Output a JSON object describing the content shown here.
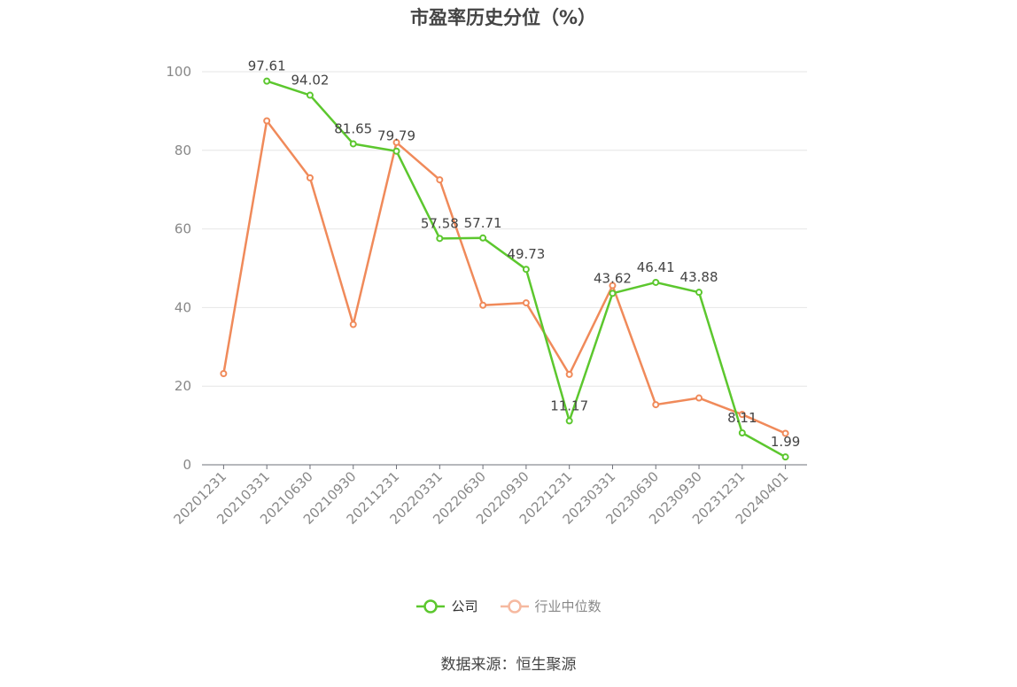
{
  "source": "数据来源：恒生聚源",
  "chart_data": {
    "type": "line",
    "title": "市盈率历史分位（%）",
    "xlabel": "",
    "ylabel": "",
    "ylim": [
      0,
      100
    ],
    "yticks": [
      0,
      20,
      40,
      60,
      80,
      100
    ],
    "grid": true,
    "legend_position": "bottom",
    "categories": [
      "20201231",
      "20210331",
      "20210630",
      "20210930",
      "20211231",
      "20220331",
      "20220630",
      "20220930",
      "20221231",
      "20230331",
      "20230630",
      "20230930",
      "20231231",
      "20240401"
    ],
    "series": [
      {
        "name": "公司",
        "color": "#5cc72e",
        "show_labels": true,
        "values": [
          null,
          97.61,
          94.02,
          81.65,
          79.79,
          57.58,
          57.71,
          49.73,
          11.17,
          43.62,
          46.41,
          43.88,
          8.11,
          1.99
        ]
      },
      {
        "name": "行业中位数",
        "color": "#f08a5a",
        "legend_color": "#f6b9a0",
        "show_labels": false,
        "values": [
          23.2,
          87.5,
          73.0,
          35.7,
          82.0,
          72.5,
          40.6,
          41.2,
          23.0,
          45.6,
          15.3,
          17.0,
          12.8,
          8.0
        ]
      }
    ]
  }
}
